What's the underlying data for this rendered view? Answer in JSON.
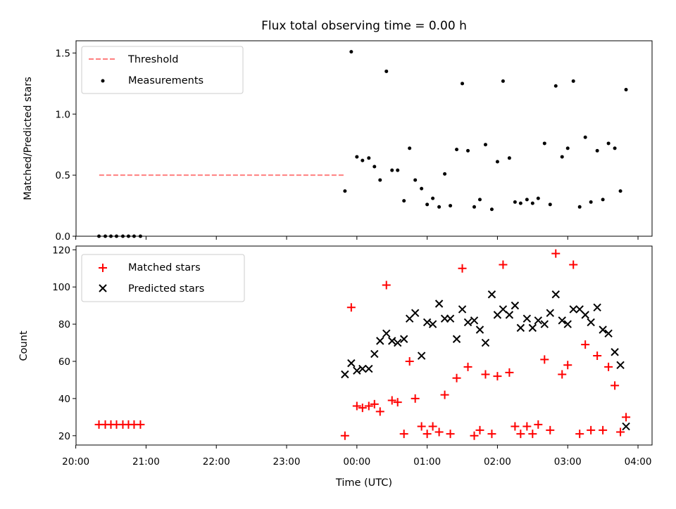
{
  "chart_data": [
    {
      "type": "scatter",
      "title": "Flux total observing time = 0.00 h",
      "xlabel": "",
      "ylabel": "Matched/Predicted stars",
      "xlim_hours": [
        -3.996,
        4.2
      ],
      "ylim": [
        0,
        1.6
      ],
      "yticks": [
        0,
        0.5,
        1.0,
        1.5
      ],
      "ytick_labels": [
        "0.0",
        "0.5",
        "1.0",
        "1.5"
      ],
      "legend_position": "top-left",
      "legend": [
        {
          "label": "Threshold",
          "style": "dashed-line",
          "color": "#ff7f7f"
        },
        {
          "label": "Measurements",
          "style": "dot",
          "color": "#000000"
        }
      ],
      "threshold": {
        "value": 0.5,
        "x_range": [
          "20:20",
          "23:50"
        ]
      },
      "measurements_hours": [
        [
          -3.67,
          0
        ],
        [
          -3.58,
          0
        ],
        [
          -3.5,
          0
        ],
        [
          -3.42,
          0
        ],
        [
          -3.33,
          0
        ],
        [
          -3.25,
          0
        ],
        [
          -3.17,
          0
        ],
        [
          -3.08,
          0
        ],
        [
          -0.17,
          0.37
        ],
        [
          -0.08,
          1.51
        ],
        [
          0,
          0.65
        ],
        [
          0.08,
          0.62
        ],
        [
          0.17,
          0.64
        ],
        [
          0.25,
          0.57
        ],
        [
          0.33,
          0.46
        ],
        [
          0.42,
          1.35
        ],
        [
          0.5,
          0.54
        ],
        [
          0.58,
          0.54
        ],
        [
          0.67,
          0.29
        ],
        [
          0.75,
          0.72
        ],
        [
          0.83,
          0.46
        ],
        [
          0.92,
          0.39
        ],
        [
          1,
          0.26
        ],
        [
          1.08,
          0.31
        ],
        [
          1.17,
          0.24
        ],
        [
          1.25,
          0.51
        ],
        [
          1.33,
          0.25
        ],
        [
          1.42,
          0.71
        ],
        [
          1.5,
          1.25
        ],
        [
          1.58,
          0.7
        ],
        [
          1.67,
          0.24
        ],
        [
          1.75,
          0.3
        ],
        [
          1.83,
          0.75
        ],
        [
          1.92,
          0.22
        ],
        [
          2,
          0.61
        ],
        [
          2.08,
          1.27
        ],
        [
          2.17,
          0.64
        ],
        [
          2.25,
          0.28
        ],
        [
          2.33,
          0.27
        ],
        [
          2.42,
          0.3
        ],
        [
          2.5,
          0.27
        ],
        [
          2.58,
          0.31
        ],
        [
          2.67,
          0.76
        ],
        [
          2.75,
          0.26
        ],
        [
          2.83,
          1.23
        ],
        [
          2.92,
          0.65
        ],
        [
          3,
          0.72
        ],
        [
          3.08,
          1.27
        ],
        [
          3.17,
          0.24
        ],
        [
          3.25,
          0.81
        ],
        [
          3.33,
          0.28
        ],
        [
          3.42,
          0.7
        ],
        [
          3.5,
          0.3
        ],
        [
          3.58,
          0.76
        ],
        [
          3.67,
          0.72
        ],
        [
          3.75,
          0.37
        ],
        [
          3.83,
          1.2
        ]
      ]
    },
    {
      "type": "scatter",
      "xlabel": "Time (UTC)",
      "ylabel": "Count",
      "xlim_hours": [
        -3.996,
        4.2
      ],
      "ylim": [
        15,
        122
      ],
      "yticks": [
        20,
        40,
        60,
        80,
        100,
        120
      ],
      "xticks_hours": [
        -4,
        -3,
        -2,
        -1,
        0,
        1,
        2,
        3,
        4
      ],
      "xtick_labels": [
        "20:00",
        "21:00",
        "22:00",
        "23:00",
        "00:00",
        "01:00",
        "02:00",
        "03:00",
        "04:00"
      ],
      "legend_position": "top-left",
      "legend": [
        {
          "label": "Matched stars",
          "style": "plus",
          "color": "#ff0000"
        },
        {
          "label": "Predicted stars",
          "style": "x",
          "color": "#000000"
        }
      ],
      "matched_hours": [
        [
          -3.67,
          26
        ],
        [
          -3.58,
          26
        ],
        [
          -3.5,
          26
        ],
        [
          -3.42,
          26
        ],
        [
          -3.33,
          26
        ],
        [
          -3.25,
          26
        ],
        [
          -3.17,
          26
        ],
        [
          -3.08,
          26
        ],
        [
          -0.17,
          20
        ],
        [
          -0.08,
          89
        ],
        [
          0,
          36
        ],
        [
          0.08,
          35
        ],
        [
          0.17,
          36
        ],
        [
          0.25,
          37
        ],
        [
          0.33,
          33
        ],
        [
          0.42,
          101
        ],
        [
          0.5,
          39
        ],
        [
          0.58,
          38
        ],
        [
          0.67,
          21
        ],
        [
          0.75,
          60
        ],
        [
          0.83,
          40
        ],
        [
          0.92,
          25
        ],
        [
          1,
          21
        ],
        [
          1.08,
          25
        ],
        [
          1.17,
          22
        ],
        [
          1.25,
          42
        ],
        [
          1.33,
          21
        ],
        [
          1.42,
          51
        ],
        [
          1.5,
          110
        ],
        [
          1.58,
          57
        ],
        [
          1.67,
          20
        ],
        [
          1.75,
          23
        ],
        [
          1.83,
          53
        ],
        [
          1.92,
          21
        ],
        [
          2,
          52
        ],
        [
          2.08,
          112
        ],
        [
          2.17,
          54
        ],
        [
          2.25,
          25
        ],
        [
          2.33,
          21
        ],
        [
          2.42,
          25
        ],
        [
          2.5,
          21
        ],
        [
          2.58,
          26
        ],
        [
          2.67,
          61
        ],
        [
          2.75,
          23
        ],
        [
          2.83,
          118
        ],
        [
          2.92,
          53
        ],
        [
          3,
          58
        ],
        [
          3.08,
          112
        ],
        [
          3.17,
          21
        ],
        [
          3.25,
          69
        ],
        [
          3.33,
          23
        ],
        [
          3.42,
          63
        ],
        [
          3.5,
          23
        ],
        [
          3.58,
          57
        ],
        [
          3.67,
          47
        ],
        [
          3.75,
          22
        ],
        [
          3.83,
          30
        ]
      ],
      "predicted_hours": [
        [
          -0.17,
          53
        ],
        [
          -0.08,
          59
        ],
        [
          0,
          55
        ],
        [
          0.08,
          56
        ],
        [
          0.17,
          56
        ],
        [
          0.25,
          64
        ],
        [
          0.33,
          71
        ],
        [
          0.42,
          75
        ],
        [
          0.5,
          71
        ],
        [
          0.58,
          70
        ],
        [
          0.67,
          72
        ],
        [
          0.75,
          83
        ],
        [
          0.83,
          86
        ],
        [
          0.92,
          63
        ],
        [
          1,
          81
        ],
        [
          1.08,
          80
        ],
        [
          1.17,
          91
        ],
        [
          1.25,
          83
        ],
        [
          1.33,
          83
        ],
        [
          1.42,
          72
        ],
        [
          1.5,
          88
        ],
        [
          1.58,
          81
        ],
        [
          1.67,
          82
        ],
        [
          1.75,
          77
        ],
        [
          1.83,
          70
        ],
        [
          1.92,
          96
        ],
        [
          2,
          85
        ],
        [
          2.08,
          88
        ],
        [
          2.17,
          85
        ],
        [
          2.25,
          90
        ],
        [
          2.33,
          78
        ],
        [
          2.42,
          83
        ],
        [
          2.5,
          78
        ],
        [
          2.58,
          82
        ],
        [
          2.67,
          80
        ],
        [
          2.75,
          86
        ],
        [
          2.83,
          96
        ],
        [
          2.92,
          82
        ],
        [
          3,
          80
        ],
        [
          3.08,
          88
        ],
        [
          3.17,
          88
        ],
        [
          3.25,
          85
        ],
        [
          3.33,
          81
        ],
        [
          3.42,
          89
        ],
        [
          3.5,
          77
        ],
        [
          3.58,
          75
        ],
        [
          3.67,
          65
        ],
        [
          3.75,
          58
        ],
        [
          3.83,
          25
        ]
      ]
    }
  ]
}
